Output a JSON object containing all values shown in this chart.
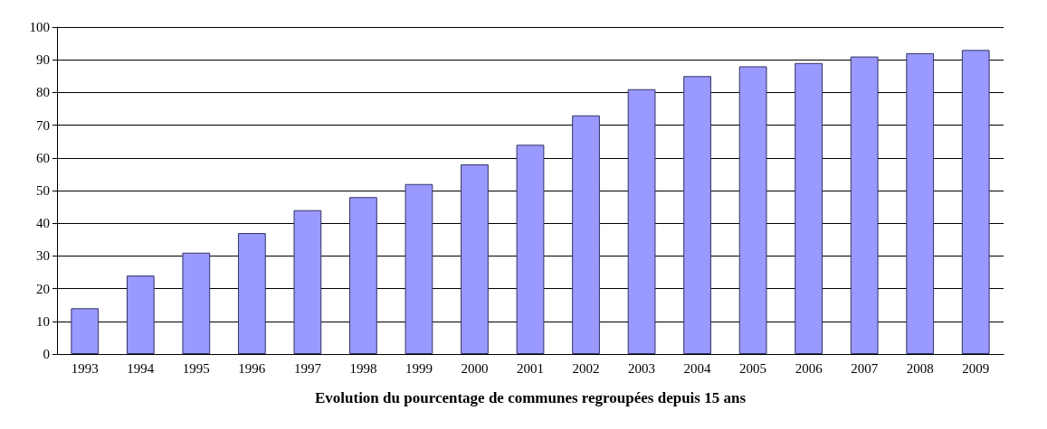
{
  "chart_data": {
    "type": "bar",
    "xlabel": "Evolution du pourcentage de communes regroupées depuis 15 ans",
    "categories": [
      "1993",
      "1994",
      "1995",
      "1996",
      "1997",
      "1998",
      "1999",
      "2000",
      "2001",
      "2002",
      "2003",
      "2004",
      "2005",
      "2006",
      "2007",
      "2008",
      "2009"
    ],
    "values": [
      14,
      24,
      31,
      37,
      44,
      48,
      52,
      58,
      64,
      73,
      81,
      85,
      88,
      89,
      91,
      92,
      93
    ],
    "color": "#9999ff",
    "ylim": [
      0,
      100
    ],
    "yticks": [
      0,
      10,
      20,
      30,
      40,
      50,
      60,
      70,
      80,
      90,
      100
    ],
    "grid": "y"
  }
}
